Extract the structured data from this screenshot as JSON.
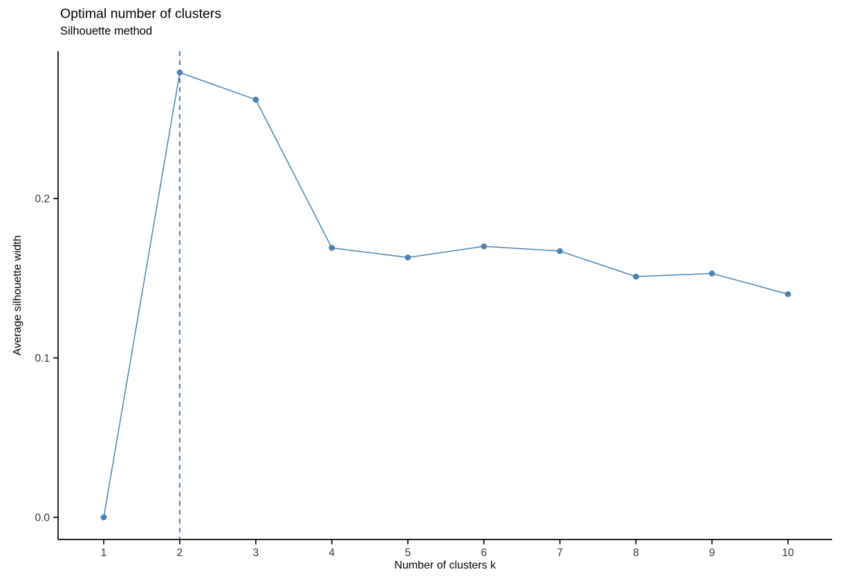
{
  "chart_data": {
    "type": "line",
    "title": "Optimal number of clusters",
    "subtitle": "Silhouette method",
    "xlabel": "Number of clusters k",
    "ylabel": "Average silhouette width",
    "x": [
      1,
      2,
      3,
      4,
      5,
      6,
      7,
      8,
      9,
      10
    ],
    "values": [
      0.0,
      0.279,
      0.262,
      0.169,
      0.163,
      0.17,
      0.167,
      0.151,
      0.153,
      0.14
    ],
    "series_name": "Average silhouette width",
    "optimal_k": 2,
    "vline": {
      "x": 2,
      "style": "dashed"
    },
    "xticks": [
      "1",
      "2",
      "3",
      "4",
      "5",
      "6",
      "7",
      "8",
      "9",
      "10"
    ],
    "xtick_values": [
      1,
      2,
      3,
      4,
      5,
      6,
      7,
      8,
      9,
      10
    ],
    "yticks": [
      "0.0",
      "0.1",
      "0.2"
    ],
    "ytick_values": [
      0.0,
      0.1,
      0.2
    ],
    "xlim": [
      0.4,
      10.58
    ],
    "ylim": [
      -0.0139,
      0.2924
    ],
    "grid": false,
    "legend_position": "none",
    "colors": {
      "line": "#4682B4",
      "point": "#4682B4",
      "vline": "#4682B4",
      "axis": "#000000",
      "tick_text": "#333333",
      "label_text": "#000000"
    }
  }
}
